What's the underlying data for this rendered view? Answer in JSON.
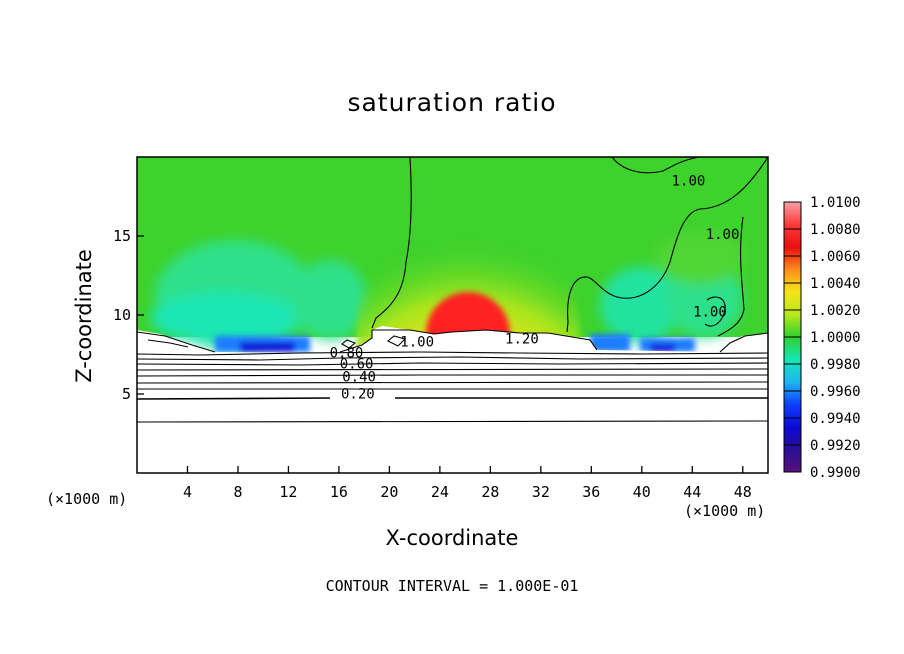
{
  "chart_data": {
    "type": "heatmap",
    "title": "saturation ratio",
    "xlabel": "X-coordinate",
    "ylabel": "Z-coordinate",
    "x_unit_label": "(×1000 m)",
    "xlim": [
      0,
      50
    ],
    "ylim": [
      0,
      20
    ],
    "x_ticks": [
      4,
      8,
      12,
      16,
      20,
      24,
      28,
      32,
      36,
      40,
      44,
      48
    ],
    "y_ticks": [
      5,
      10,
      15
    ],
    "colorbar": {
      "ticks": [
        "1.0100",
        "1.0080",
        "1.0060",
        "1.0040",
        "1.0020",
        "1.0000",
        "0.9980",
        "0.9960",
        "0.9940",
        "0.9920",
        "0.9900"
      ],
      "colors": [
        "#f7a0a6",
        "#ff3a3a",
        "#e80f0f",
        "#ff8c1a",
        "#f5e61a",
        "#b6e81a",
        "#2fd12f",
        "#18e6b4",
        "#1fb6f0",
        "#0f3fff",
        "#0a0ad2",
        "#2a0f96",
        "#5a107a"
      ],
      "range": [
        0.99,
        1.01
      ]
    },
    "contour_labels": [
      {
        "text": "1.20",
        "x": 30.5,
        "y": 8.2
      },
      {
        "text": "1.00",
        "x": 22.2,
        "y": 8.0
      },
      {
        "text": "0.80",
        "x": 16.6,
        "y": 7.3
      },
      {
        "text": "0.60",
        "x": 17.4,
        "y": 6.6
      },
      {
        "text": "0.40",
        "x": 17.6,
        "y": 5.8
      },
      {
        "text": "0.20",
        "x": 17.5,
        "y": 4.7
      },
      {
        "text": "1.00",
        "x": 43.7,
        "y": 18.2
      },
      {
        "text": "1.00",
        "x": 46.4,
        "y": 14.8
      },
      {
        "text": "1.00",
        "x": 45.4,
        "y": 9.9
      }
    ],
    "contour_interval_text": "CONTOUR INTERVAL = 1.000E-01",
    "grid": false,
    "legend_placement": "right colorbar"
  }
}
